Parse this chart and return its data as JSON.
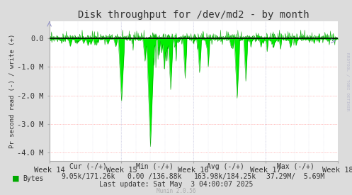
{
  "title": "Disk throughput for /dev/md2 - by month",
  "ylabel": "Pr second read (-) / write (+)",
  "bg_color": "#DCDCDC",
  "plot_bg_color": "#FFFFFF",
  "line_color": "#00EE00",
  "zero_line_color": "#000000",
  "ylim": [
    -4300000,
    600000
  ],
  "yticks": [
    -4000000,
    -3000000,
    -2000000,
    -1000000,
    0
  ],
  "ytick_labels": [
    "-4.0 M",
    "-3.0 M",
    "-2.0 M",
    "-1.0 M",
    "0.0"
  ],
  "week_labels": [
    "Week 14",
    "Week 15",
    "Week 16",
    "Week 17",
    "Week 18"
  ],
  "footer_col1_label": "Cur (-/+)",
  "footer_col2_label": "Min (-/+)",
  "footer_col3_label": "Avg (-/+)",
  "footer_col4_label": "Max (-/+)",
  "legend_label": "Bytes",
  "legend_color": "#00AA00",
  "footer_cur": "9.05k/171.26k",
  "footer_min": "0.00 /136.88k",
  "footer_avg": "163.98k/184.25k",
  "footer_max": "37.29M/  5.69M",
  "last_update": "Last update: Sat May  3 04:00:07 2025",
  "munin_version": "Munin 2.0.56",
  "rrdtool_label": "RRDTOOL / TOBI OETIKER",
  "n_points": 800,
  "title_fontsize": 10,
  "tick_fontsize": 7.5,
  "footer_fontsize": 7
}
